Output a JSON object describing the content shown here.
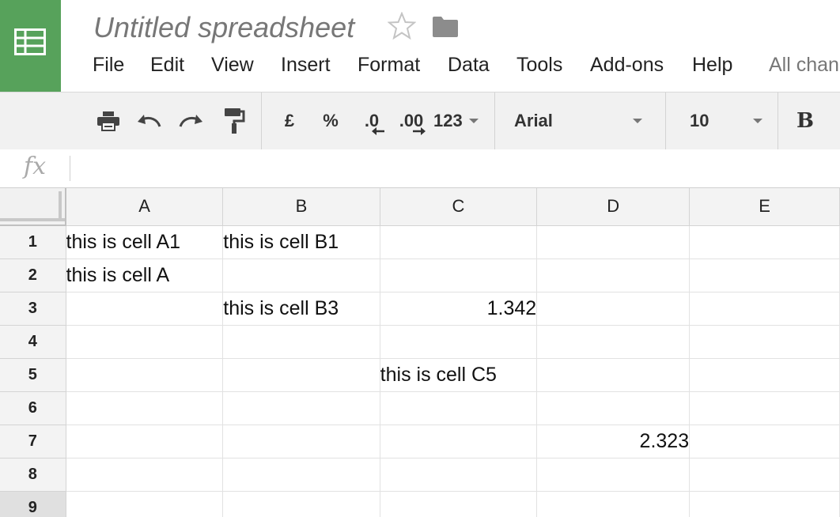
{
  "app": {
    "title": "Untitled spreadsheet",
    "save_status": "All chan"
  },
  "menu": [
    "File",
    "Edit",
    "View",
    "Insert",
    "Format",
    "Data",
    "Tools",
    "Add-ons",
    "Help"
  ],
  "toolbar": {
    "currency_label": "£",
    "percent_label": "%",
    "decrease_decimal_label": ".0",
    "increase_decimal_label": ".00",
    "format_label": "123",
    "font_family": "Arial",
    "font_size": "10",
    "bold_label": "B"
  },
  "formula": {
    "fx_label": "fx",
    "value": ""
  },
  "grid": {
    "columns": [
      "A",
      "B",
      "C",
      "D",
      "E"
    ],
    "rows": [
      {
        "num": "1",
        "cells": [
          "this is cell A1",
          "this is cell B1",
          "",
          "",
          ""
        ]
      },
      {
        "num": "2",
        "cells": [
          "this is cell A",
          "",
          "",
          "",
          ""
        ]
      },
      {
        "num": "3",
        "cells": [
          "",
          "this is cell B3",
          "1.342",
          "",
          ""
        ]
      },
      {
        "num": "4",
        "cells": [
          "",
          "",
          "",
          "",
          ""
        ]
      },
      {
        "num": "5",
        "cells": [
          "",
          "",
          "this is cell C5",
          "",
          ""
        ]
      },
      {
        "num": "6",
        "cells": [
          "",
          "",
          "",
          "",
          ""
        ]
      },
      {
        "num": "7",
        "cells": [
          "",
          "",
          "",
          "2.323",
          ""
        ]
      },
      {
        "num": "8",
        "cells": [
          "",
          "",
          "",
          "",
          ""
        ]
      },
      {
        "num": "9",
        "cells": [
          "",
          "",
          "",
          "",
          ""
        ]
      }
    ]
  },
  "colors": {
    "brand": "#57a25b",
    "toolbar_bg": "#f1f1f1"
  },
  "icons": [
    "sheets-logo-icon",
    "star-icon",
    "folder-icon",
    "print-icon",
    "undo-icon",
    "redo-icon",
    "paint-format-icon"
  ]
}
